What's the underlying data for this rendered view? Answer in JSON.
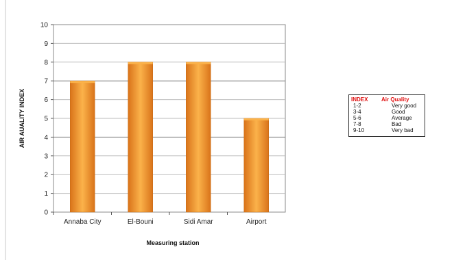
{
  "chart_data": {
    "type": "bar",
    "categories": [
      "Annaba City",
      "El-Bouni",
      "Sidi Amar",
      "Airport"
    ],
    "values": [
      7,
      8,
      8,
      5
    ],
    "title": "",
    "xlabel": "Measuring station",
    "ylabel": "AIR AUALITY INDEX",
    "ylim": [
      0,
      10
    ],
    "yticks": [
      "0",
      "1",
      "2",
      "3",
      "4",
      "5",
      "6",
      "7",
      "8",
      "9",
      "10"
    ],
    "grid": true,
    "bar_color": "#e8891e",
    "bar_highlight": "#fbb24a",
    "legend": {
      "placement": "right",
      "header": {
        "index": "INDEX",
        "quality": "Air Quality"
      },
      "rows": [
        {
          "index": "1-2",
          "quality": "Very good"
        },
        {
          "index": "3-4",
          "quality": "Good"
        },
        {
          "index": "5-6",
          "quality": "Average"
        },
        {
          "index": "7-8",
          "quality": "Bad"
        },
        {
          "index": "9-10",
          "quality": "Very bad"
        }
      ]
    }
  }
}
